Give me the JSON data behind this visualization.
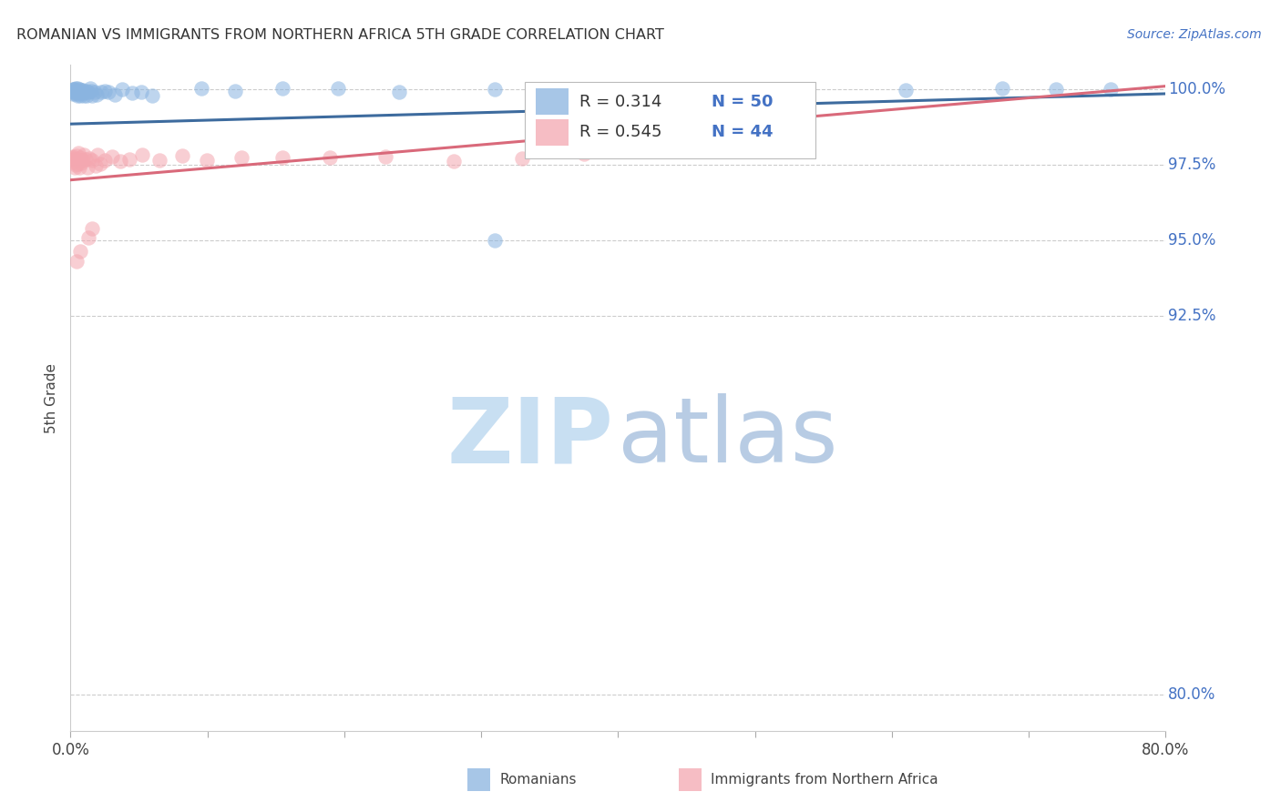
{
  "title": "ROMANIAN VS IMMIGRANTS FROM NORTHERN AFRICA 5TH GRADE CORRELATION CHART",
  "source": "Source: ZipAtlas.com",
  "ylabel": "5th Grade",
  "xlim": [
    0.0,
    0.8
  ],
  "ylim": [
    0.788,
    1.008
  ],
  "xticks": [
    0.0,
    0.1,
    0.2,
    0.3,
    0.4,
    0.5,
    0.6,
    0.7,
    0.8
  ],
  "xticklabels": [
    "0.0%",
    "",
    "",
    "",
    "",
    "",
    "",
    "",
    "80.0%"
  ],
  "yticks": [
    0.8,
    0.925,
    0.95,
    0.975,
    1.0
  ],
  "yticklabels": [
    "80.0%",
    "92.5%",
    "95.0%",
    "97.5%",
    "100.0%"
  ],
  "legend_r_blue": "R = 0.314",
  "legend_n_blue": "N = 50",
  "legend_r_pink": "R = 0.545",
  "legend_n_pink": "N = 44",
  "blue_color": "#8ab4e0",
  "pink_color": "#f4a7b0",
  "blue_line_color": "#3d6b9e",
  "pink_line_color": "#d9697a",
  "blue_trend": [
    0.9885,
    0.9985
  ],
  "pink_trend": [
    0.97,
    1.001
  ],
  "romanians_x": [
    0.001,
    0.002,
    0.002,
    0.003,
    0.003,
    0.003,
    0.004,
    0.004,
    0.005,
    0.005,
    0.005,
    0.006,
    0.006,
    0.007,
    0.007,
    0.008,
    0.008,
    0.009,
    0.01,
    0.01,
    0.011,
    0.012,
    0.013,
    0.014,
    0.015,
    0.016,
    0.018,
    0.02,
    0.022,
    0.025,
    0.028,
    0.032,
    0.038,
    0.045,
    0.052,
    0.06,
    0.075,
    0.095,
    0.12,
    0.155,
    0.195,
    0.24,
    0.31,
    0.39,
    0.44,
    0.52,
    0.61,
    0.68,
    0.72,
    0.76
  ],
  "romanians_y": [
    0.998,
    0.999,
    1.0,
    0.999,
    1.0,
    1.0,
    0.999,
    1.0,
    0.999,
    1.0,
    0.998,
    0.999,
    1.0,
    0.999,
    0.998,
    1.0,
    0.999,
    1.0,
    0.998,
    0.999,
    0.999,
    0.998,
    0.999,
    1.0,
    0.999,
    0.998,
    0.999,
    0.998,
    0.999,
    1.0,
    0.999,
    0.998,
    1.0,
    0.999,
    0.999,
    0.998,
    1.0,
    1.0,
    0.999,
    1.0,
    1.0,
    0.999,
    1.0,
    1.0,
    1.0,
    1.0,
    0.999,
    1.0,
    1.0,
    1.0
  ],
  "northa_x": [
    0.001,
    0.001,
    0.002,
    0.002,
    0.003,
    0.003,
    0.004,
    0.004,
    0.005,
    0.005,
    0.005,
    0.006,
    0.006,
    0.007,
    0.007,
    0.008,
    0.009,
    0.01,
    0.011,
    0.012,
    0.014,
    0.016,
    0.018,
    0.02,
    0.022,
    0.025,
    0.03,
    0.036,
    0.043,
    0.052,
    0.065,
    0.082,
    0.1,
    0.125,
    0.155,
    0.19,
    0.23,
    0.28,
    0.33,
    0.375,
    0.005,
    0.006,
    0.007,
    0.008
  ],
  "northa_y": [
    0.978,
    0.977,
    0.976,
    0.978,
    0.977,
    0.975,
    0.978,
    0.976,
    0.977,
    0.975,
    0.976,
    0.978,
    0.975,
    0.977,
    0.976,
    0.975,
    0.977,
    0.978,
    0.976,
    0.975,
    0.977,
    0.976,
    0.975,
    0.978,
    0.976,
    0.977,
    0.978,
    0.976,
    0.977,
    0.978,
    0.977,
    0.978,
    0.976,
    0.977,
    0.978,
    0.977,
    0.978,
    0.976,
    0.977,
    0.978,
    0.966,
    0.963,
    0.958,
    0.955
  ]
}
